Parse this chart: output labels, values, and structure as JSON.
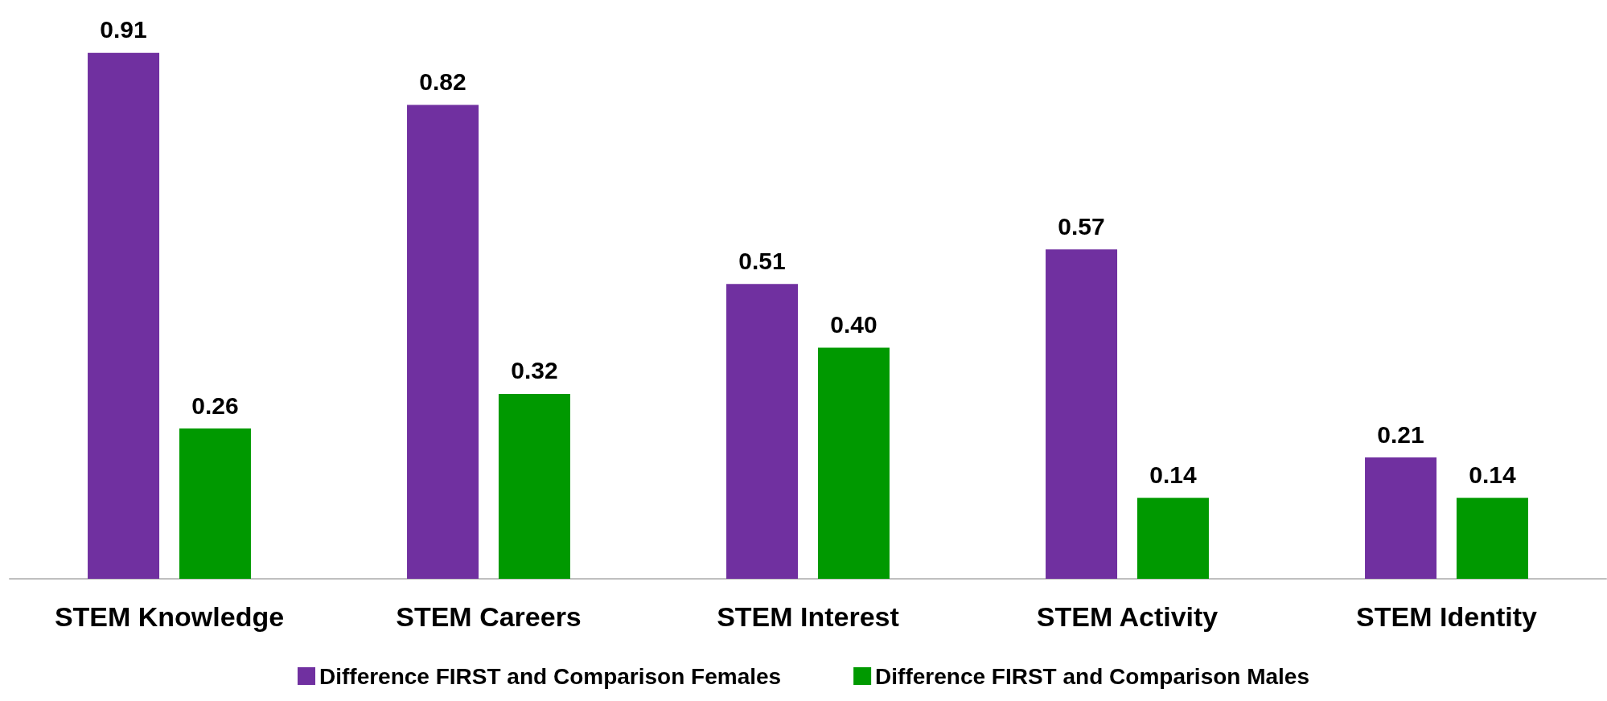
{
  "chart_data": {
    "type": "bar",
    "categories": [
      "STEM Knowledge",
      "STEM Careers",
      "STEM Interest",
      "STEM Activity",
      "STEM Identity"
    ],
    "series": [
      {
        "name": "Difference FIRST and Comparison Females",
        "color": "#7030a0",
        "values": [
          0.91,
          0.82,
          0.51,
          0.57,
          0.21
        ],
        "value_labels": [
          "0.91",
          "0.82",
          "0.51",
          "0.57",
          "0.21"
        ]
      },
      {
        "name": "Difference FIRST and Comparison Males",
        "color": "#009900",
        "values": [
          0.26,
          0.32,
          0.4,
          0.14,
          0.14
        ],
        "value_labels": [
          "0.26",
          "0.32",
          "0.40",
          "0.14",
          "0.14"
        ]
      }
    ],
    "legend": "bottom",
    "grid": false
  }
}
